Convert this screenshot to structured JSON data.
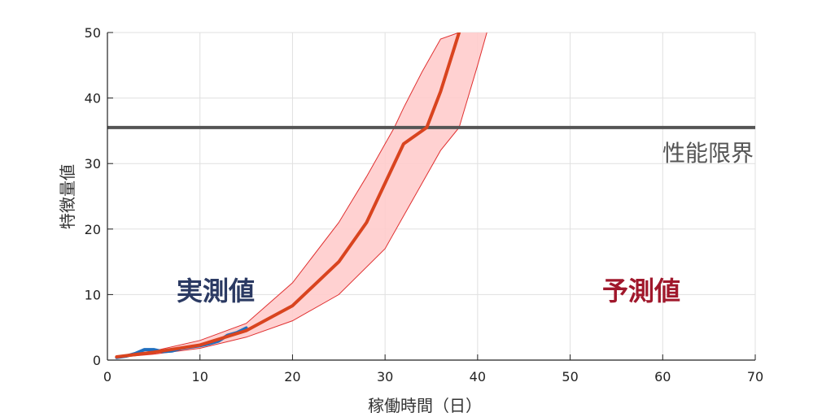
{
  "chart_data": {
    "type": "line",
    "xlabel": "稼働時間（日）",
    "ylabel": "特徴量値",
    "xlim": [
      0,
      70
    ],
    "ylim": [
      0,
      50
    ],
    "xticks": [
      0,
      10,
      20,
      30,
      40,
      50,
      60,
      70
    ],
    "yticks": [
      0,
      10,
      20,
      30,
      40,
      50
    ],
    "grid": true,
    "colors": {
      "measured": "#1f6fbf",
      "prediction": "#d9441f",
      "band_fill": "#ffcccc",
      "band_edge": "#e03030",
      "threshold": "#555555",
      "measured_label": "#2b3a63",
      "predicted_label": "#a0182c"
    },
    "threshold": {
      "value": 35.5,
      "label": "性能限界"
    },
    "annotations": {
      "measured": "実測値",
      "predicted": "予測値"
    },
    "series": [
      {
        "name": "",
        "role": "measured",
        "x": [
          1,
          2,
          3,
          4,
          5,
          6,
          7,
          8,
          9,
          10,
          11,
          12,
          13,
          14,
          15
        ],
        "y": [
          0.4,
          0.6,
          1.0,
          1.6,
          1.6,
          1.3,
          1.4,
          1.8,
          2.0,
          2.2,
          2.5,
          2.9,
          3.8,
          4.2,
          4.9
        ]
      },
      {
        "name": "",
        "role": "prediction",
        "x": [
          1,
          5,
          10,
          15,
          20,
          25,
          28,
          30,
          32,
          34.5,
          36,
          38
        ],
        "y": [
          0.5,
          1.2,
          2.3,
          4.5,
          8.3,
          15.0,
          21.0,
          27.0,
          33.0,
          35.5,
          41.0,
          50.0
        ]
      },
      {
        "name": "",
        "role": "upper_bound",
        "x": [
          1,
          5,
          10,
          15,
          20,
          25,
          28,
          30,
          31,
          32,
          34,
          36,
          38
        ],
        "y": [
          0.6,
          1.4,
          3.0,
          5.6,
          11.8,
          21.0,
          28.0,
          33.0,
          35.5,
          38.5,
          44.0,
          49.0,
          50.0
        ]
      },
      {
        "name": "",
        "role": "lower_bound",
        "x": [
          1,
          5,
          10,
          15,
          20,
          25,
          30,
          32,
          34,
          36,
          38,
          40,
          41
        ],
        "y": [
          0.4,
          0.9,
          1.8,
          3.5,
          6.0,
          10.0,
          17.0,
          22.0,
          27.0,
          32.0,
          35.5,
          45.0,
          50.0
        ]
      }
    ]
  }
}
